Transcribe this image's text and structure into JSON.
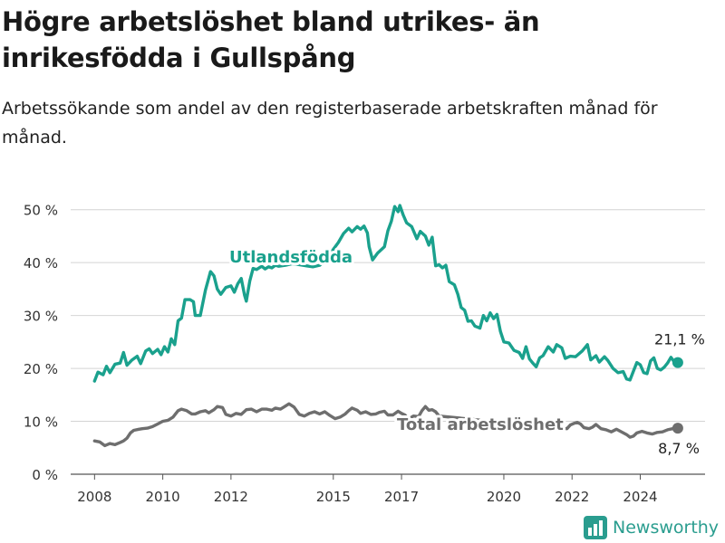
{
  "header": {
    "title": "Högre arbetslöshet bland utrikes- än inrikesfödda i Gullspång",
    "subtitle": "Arbetssökande som andel av den registerbaserade arbetskraften månad för månad."
  },
  "brand": {
    "name": "Newsworthy",
    "icon": "newsworthy-logo-icon",
    "color": "#2a9d8f"
  },
  "chart_data": {
    "type": "line",
    "title": "Högre arbetslöshet bland utrikes- än inrikesfödda i Gullspång",
    "subtitle": "Arbetssökande som andel av den registerbaserade arbetskraften månad för månad.",
    "xlabel": "",
    "ylabel": "",
    "xlim": [
      2007.3,
      2025.9
    ],
    "ylim": [
      0,
      52
    ],
    "x_ticks": [
      2008,
      2010,
      2012,
      2015,
      2017,
      2020,
      2022,
      2024
    ],
    "x_tick_labels": [
      "2008",
      "2010",
      "2012",
      "2015",
      "2017",
      "2020",
      "2022",
      "2024"
    ],
    "y_ticks": [
      0,
      10,
      20,
      30,
      40,
      50
    ],
    "y_tick_labels": [
      "0 %",
      "10 %",
      "20 %",
      "30 %",
      "40 %",
      "50 %"
    ],
    "grid": true,
    "legend": "none",
    "series": [
      {
        "name": "Utlandsfödda",
        "color": "#1aa18d",
        "end_label": "21,1 %",
        "points": [
          [
            2008.0,
            17.6
          ],
          [
            2008.1,
            19.3
          ],
          [
            2008.25,
            18.8
          ],
          [
            2008.35,
            20.4
          ],
          [
            2008.45,
            19.2
          ],
          [
            2008.6,
            20.8
          ],
          [
            2008.75,
            21.0
          ],
          [
            2008.85,
            23.0
          ],
          [
            2008.95,
            20.6
          ],
          [
            2009.1,
            21.6
          ],
          [
            2009.25,
            22.3
          ],
          [
            2009.35,
            20.9
          ],
          [
            2009.5,
            23.3
          ],
          [
            2009.6,
            23.7
          ],
          [
            2009.7,
            22.8
          ],
          [
            2009.85,
            23.6
          ],
          [
            2009.95,
            22.6
          ],
          [
            2010.05,
            24.1
          ],
          [
            2010.15,
            23.1
          ],
          [
            2010.25,
            25.6
          ],
          [
            2010.35,
            24.5
          ],
          [
            2010.45,
            29.0
          ],
          [
            2010.55,
            29.5
          ],
          [
            2010.65,
            33.0
          ],
          [
            2010.8,
            33.0
          ],
          [
            2010.9,
            32.6
          ],
          [
            2010.95,
            30.0
          ],
          [
            2011.1,
            30.0
          ],
          [
            2011.25,
            34.8
          ],
          [
            2011.4,
            38.3
          ],
          [
            2011.5,
            37.5
          ],
          [
            2011.6,
            35.0
          ],
          [
            2011.7,
            34.0
          ],
          [
            2011.85,
            35.3
          ],
          [
            2012.0,
            35.6
          ],
          [
            2012.1,
            34.4
          ],
          [
            2012.2,
            36.0
          ],
          [
            2012.3,
            37.0
          ],
          [
            2012.4,
            33.8
          ],
          [
            2012.45,
            32.7
          ],
          [
            2012.55,
            36.5
          ],
          [
            2012.65,
            38.9
          ],
          [
            2012.75,
            38.7
          ],
          [
            2012.9,
            39.3
          ],
          [
            2013.0,
            38.8
          ],
          [
            2013.1,
            39.2
          ],
          [
            2013.2,
            39.0
          ],
          [
            2013.3,
            39.5
          ],
          [
            2013.4,
            39.3
          ],
          [
            2013.6,
            39.5
          ],
          [
            2013.8,
            39.8
          ],
          [
            2014.0,
            39.6
          ],
          [
            2014.2,
            39.4
          ],
          [
            2014.4,
            39.2
          ],
          [
            2014.6,
            39.5
          ],
          [
            2014.8,
            40.5
          ],
          [
            2015.0,
            42.5
          ],
          [
            2015.15,
            43.8
          ],
          [
            2015.3,
            45.5
          ],
          [
            2015.45,
            46.5
          ],
          [
            2015.55,
            45.8
          ],
          [
            2015.7,
            46.8
          ],
          [
            2015.8,
            46.3
          ],
          [
            2015.9,
            46.9
          ],
          [
            2016.0,
            45.6
          ],
          [
            2016.05,
            43.0
          ],
          [
            2016.15,
            40.5
          ],
          [
            2016.3,
            41.8
          ],
          [
            2016.5,
            43.0
          ],
          [
            2016.6,
            46.0
          ],
          [
            2016.7,
            47.8
          ],
          [
            2016.8,
            50.6
          ],
          [
            2016.9,
            49.6
          ],
          [
            2016.95,
            50.8
          ],
          [
            2017.05,
            49.0
          ],
          [
            2017.15,
            47.5
          ],
          [
            2017.3,
            46.8
          ],
          [
            2017.45,
            44.5
          ],
          [
            2017.55,
            45.9
          ],
          [
            2017.7,
            45.0
          ],
          [
            2017.8,
            43.3
          ],
          [
            2017.9,
            44.8
          ],
          [
            2018.0,
            39.4
          ],
          [
            2018.1,
            39.6
          ],
          [
            2018.2,
            39.0
          ],
          [
            2018.3,
            39.5
          ],
          [
            2018.4,
            36.4
          ],
          [
            2018.55,
            35.8
          ],
          [
            2018.65,
            34.0
          ],
          [
            2018.75,
            31.5
          ],
          [
            2018.85,
            31.0
          ],
          [
            2018.95,
            28.9
          ],
          [
            2019.05,
            29.0
          ],
          [
            2019.15,
            28.0
          ],
          [
            2019.3,
            27.6
          ],
          [
            2019.4,
            30.0
          ],
          [
            2019.5,
            29.0
          ],
          [
            2019.6,
            30.5
          ],
          [
            2019.7,
            29.4
          ],
          [
            2019.8,
            30.2
          ],
          [
            2019.9,
            27.0
          ],
          [
            2020.0,
            25.0
          ],
          [
            2020.15,
            24.8
          ],
          [
            2020.3,
            23.4
          ],
          [
            2020.45,
            23.0
          ],
          [
            2020.55,
            21.9
          ],
          [
            2020.65,
            24.1
          ],
          [
            2020.75,
            21.8
          ],
          [
            2020.85,
            21.0
          ],
          [
            2020.95,
            20.3
          ],
          [
            2021.05,
            22.0
          ],
          [
            2021.15,
            22.4
          ],
          [
            2021.3,
            24.1
          ],
          [
            2021.45,
            23.1
          ],
          [
            2021.55,
            24.5
          ],
          [
            2021.7,
            23.9
          ],
          [
            2021.8,
            21.9
          ],
          [
            2021.95,
            22.3
          ],
          [
            2022.1,
            22.2
          ],
          [
            2022.3,
            23.3
          ],
          [
            2022.45,
            24.5
          ],
          [
            2022.55,
            21.6
          ],
          [
            2022.7,
            22.4
          ],
          [
            2022.8,
            21.2
          ],
          [
            2022.95,
            22.2
          ],
          [
            2023.05,
            21.5
          ],
          [
            2023.2,
            20.0
          ],
          [
            2023.35,
            19.2
          ],
          [
            2023.5,
            19.4
          ],
          [
            2023.6,
            18.0
          ],
          [
            2023.7,
            17.8
          ],
          [
            2023.8,
            19.5
          ],
          [
            2023.9,
            21.1
          ],
          [
            2024.0,
            20.7
          ],
          [
            2024.1,
            19.2
          ],
          [
            2024.2,
            19.0
          ],
          [
            2024.3,
            21.4
          ],
          [
            2024.4,
            22.0
          ],
          [
            2024.5,
            20.0
          ],
          [
            2024.6,
            19.7
          ],
          [
            2024.7,
            20.2
          ],
          [
            2024.8,
            21.0
          ],
          [
            2024.9,
            22.1
          ],
          [
            2025.0,
            21.2
          ],
          [
            2025.1,
            21.1
          ]
        ]
      },
      {
        "name": "Total arbetslöshet",
        "color": "#6e6e6e",
        "end_label": "8,7 %",
        "points": [
          [
            2008.0,
            6.3
          ],
          [
            2008.15,
            6.1
          ],
          [
            2008.3,
            5.4
          ],
          [
            2008.45,
            5.8
          ],
          [
            2008.6,
            5.6
          ],
          [
            2008.75,
            6.0
          ],
          [
            2008.85,
            6.3
          ],
          [
            2008.95,
            6.8
          ],
          [
            2009.05,
            7.8
          ],
          [
            2009.15,
            8.3
          ],
          [
            2009.3,
            8.5
          ],
          [
            2009.4,
            8.6
          ],
          [
            2009.55,
            8.7
          ],
          [
            2009.7,
            9.0
          ],
          [
            2009.85,
            9.5
          ],
          [
            2010.0,
            10.0
          ],
          [
            2010.15,
            10.2
          ],
          [
            2010.3,
            10.8
          ],
          [
            2010.45,
            12.0
          ],
          [
            2010.55,
            12.3
          ],
          [
            2010.7,
            12.0
          ],
          [
            2010.85,
            11.4
          ],
          [
            2010.95,
            11.4
          ],
          [
            2011.1,
            11.8
          ],
          [
            2011.25,
            12.0
          ],
          [
            2011.35,
            11.6
          ],
          [
            2011.5,
            12.2
          ],
          [
            2011.6,
            12.8
          ],
          [
            2011.75,
            12.6
          ],
          [
            2011.85,
            11.3
          ],
          [
            2012.0,
            11.0
          ],
          [
            2012.15,
            11.5
          ],
          [
            2012.3,
            11.3
          ],
          [
            2012.45,
            12.2
          ],
          [
            2012.6,
            12.3
          ],
          [
            2012.75,
            11.8
          ],
          [
            2012.9,
            12.3
          ],
          [
            2013.05,
            12.3
          ],
          [
            2013.2,
            12.1
          ],
          [
            2013.3,
            12.5
          ],
          [
            2013.45,
            12.3
          ],
          [
            2013.55,
            12.7
          ],
          [
            2013.7,
            13.3
          ],
          [
            2013.85,
            12.7
          ],
          [
            2014.0,
            11.3
          ],
          [
            2014.15,
            11.0
          ],
          [
            2014.3,
            11.5
          ],
          [
            2014.45,
            11.8
          ],
          [
            2014.6,
            11.4
          ],
          [
            2014.75,
            11.8
          ],
          [
            2014.9,
            11.1
          ],
          [
            2015.05,
            10.5
          ],
          [
            2015.2,
            10.8
          ],
          [
            2015.35,
            11.4
          ],
          [
            2015.45,
            12.0
          ],
          [
            2015.55,
            12.5
          ],
          [
            2015.7,
            12.1
          ],
          [
            2015.8,
            11.5
          ],
          [
            2015.95,
            11.8
          ],
          [
            2016.1,
            11.3
          ],
          [
            2016.25,
            11.4
          ],
          [
            2016.35,
            11.7
          ],
          [
            2016.5,
            11.9
          ],
          [
            2016.6,
            11.2
          ],
          [
            2016.75,
            11.2
          ],
          [
            2016.9,
            11.9
          ],
          [
            2017.0,
            11.5
          ],
          [
            2017.1,
            11.2
          ],
          [
            2017.2,
            10.4
          ],
          [
            2017.35,
            11.0
          ],
          [
            2017.5,
            10.9
          ],
          [
            2017.6,
            12.0
          ],
          [
            2017.7,
            12.8
          ],
          [
            2017.8,
            12.1
          ],
          [
            2017.9,
            12.2
          ],
          [
            2018.0,
            11.8
          ],
          [
            2018.1,
            11.0
          ],
          [
            2021.85,
            8.6
          ],
          [
            2021.95,
            9.3
          ],
          [
            2022.05,
            9.6
          ],
          [
            2022.15,
            9.8
          ],
          [
            2022.25,
            9.5
          ],
          [
            2022.35,
            8.8
          ],
          [
            2022.5,
            8.6
          ],
          [
            2022.6,
            8.9
          ],
          [
            2022.7,
            9.4
          ],
          [
            2022.85,
            8.6
          ],
          [
            2023.0,
            8.4
          ],
          [
            2023.15,
            8.0
          ],
          [
            2023.3,
            8.5
          ],
          [
            2023.45,
            8.0
          ],
          [
            2023.6,
            7.5
          ],
          [
            2023.7,
            7.0
          ],
          [
            2023.8,
            7.2
          ],
          [
            2023.9,
            7.8
          ],
          [
            2024.05,
            8.1
          ],
          [
            2024.2,
            7.8
          ],
          [
            2024.35,
            7.6
          ],
          [
            2024.5,
            7.9
          ],
          [
            2024.65,
            8.0
          ],
          [
            2024.8,
            8.4
          ],
          [
            2024.95,
            8.6
          ],
          [
            2025.1,
            8.7
          ]
        ]
      }
    ]
  }
}
